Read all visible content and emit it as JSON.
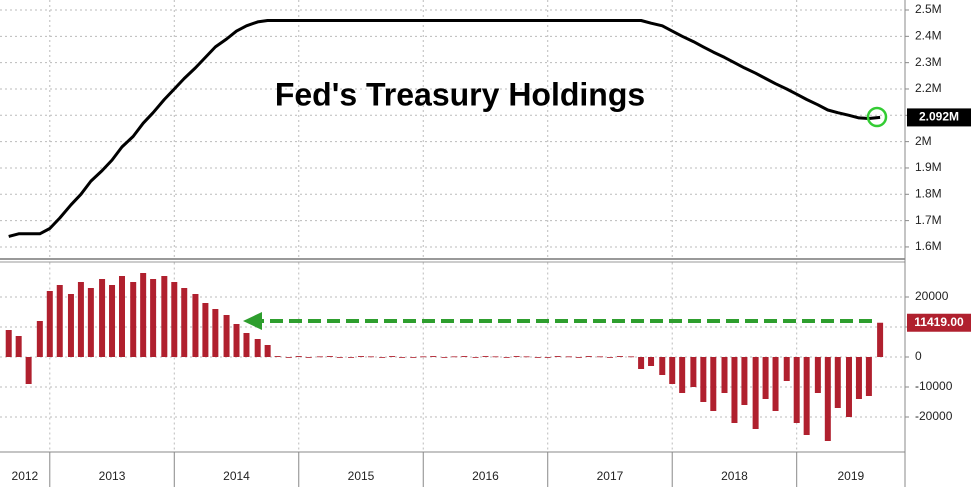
{
  "chart_data": [
    {
      "type": "line",
      "title": "Fed's Treasury Holdings",
      "x": [
        2012.67,
        2012.75,
        2012.83,
        2012.92,
        2013.0,
        2013.08,
        2013.17,
        2013.25,
        2013.33,
        2013.42,
        2013.5,
        2013.58,
        2013.67,
        2013.75,
        2013.83,
        2013.92,
        2014.0,
        2014.08,
        2014.17,
        2014.25,
        2014.33,
        2014.42,
        2014.5,
        2014.58,
        2014.67,
        2014.75,
        2014.83,
        2014.92,
        2015.0,
        2015.08,
        2015.17,
        2015.25,
        2015.33,
        2015.42,
        2015.5,
        2015.58,
        2015.67,
        2015.75,
        2015.83,
        2015.92,
        2016.0,
        2016.08,
        2016.17,
        2016.25,
        2016.33,
        2016.42,
        2016.5,
        2016.58,
        2016.67,
        2016.75,
        2016.83,
        2016.92,
        2017.0,
        2017.08,
        2017.17,
        2017.25,
        2017.33,
        2017.42,
        2017.5,
        2017.58,
        2017.67,
        2017.75,
        2017.83,
        2017.92,
        2018.0,
        2018.08,
        2018.17,
        2018.25,
        2018.33,
        2018.42,
        2018.5,
        2018.58,
        2018.67,
        2018.75,
        2018.83,
        2018.92,
        2019.0,
        2019.08,
        2019.17,
        2019.25,
        2019.33,
        2019.42,
        2019.5,
        2019.58,
        2019.67
      ],
      "series": [
        {
          "color": "#000000",
          "values": [
            1.64,
            1.65,
            1.65,
            1.65,
            1.67,
            1.71,
            1.76,
            1.8,
            1.85,
            1.89,
            1.93,
            1.98,
            2.02,
            2.07,
            2.11,
            2.16,
            2.2,
            2.24,
            2.28,
            2.32,
            2.36,
            2.39,
            2.42,
            2.44,
            2.455,
            2.46,
            2.46,
            2.46,
            2.46,
            2.46,
            2.46,
            2.46,
            2.46,
            2.46,
            2.46,
            2.46,
            2.46,
            2.46,
            2.46,
            2.46,
            2.46,
            2.46,
            2.46,
            2.46,
            2.46,
            2.46,
            2.46,
            2.46,
            2.46,
            2.46,
            2.46,
            2.46,
            2.46,
            2.46,
            2.46,
            2.46,
            2.46,
            2.46,
            2.46,
            2.46,
            2.46,
            2.46,
            2.45,
            2.44,
            2.42,
            2.4,
            2.38,
            2.36,
            2.34,
            2.32,
            2.3,
            2.28,
            2.26,
            2.24,
            2.22,
            2.2,
            2.18,
            2.16,
            2.14,
            2.12,
            2.11,
            2.1,
            2.09,
            2.088,
            2.092
          ],
          "value_labels": [
            null,
            null,
            null,
            null,
            null,
            null,
            null,
            null,
            null,
            null,
            null,
            null,
            null,
            null,
            null,
            null,
            null,
            null,
            null,
            null,
            null,
            null,
            null,
            null,
            null,
            null,
            null,
            null,
            null,
            null,
            null,
            null,
            null,
            null,
            null,
            null,
            null,
            null,
            null,
            null,
            null,
            null,
            null,
            null,
            null,
            null,
            null,
            null,
            null,
            null,
            null,
            null,
            null,
            null,
            null,
            null,
            null,
            null,
            null,
            null,
            null,
            null,
            null,
            null,
            null,
            null,
            null,
            null,
            null,
            null,
            null,
            null,
            null,
            null,
            null,
            null,
            null,
            null,
            null,
            null,
            null,
            null,
            null,
            null,
            "2.092M"
          ]
        }
      ],
      "xlim": [
        2012.6,
        2019.87
      ],
      "ylim": [
        1.558,
        2.538
      ],
      "yticks": [
        {
          "value": 1.6,
          "label": "1.6M"
        },
        {
          "value": 1.7,
          "label": "1.7M"
        },
        {
          "value": 1.8,
          "label": "1.8M"
        },
        {
          "value": 1.9,
          "label": "1.9M"
        },
        {
          "value": 2,
          "label": "2M"
        },
        {
          "value": 2.1,
          "label": "2.1M"
        },
        {
          "value": 2.2,
          "label": "2.2M"
        },
        {
          "value": 2.3,
          "label": "2.3M"
        },
        {
          "value": 2.4,
          "label": "2.4M"
        },
        {
          "value": 2.5,
          "label": "2.5M"
        }
      ],
      "grid": true
    },
    {
      "type": "bar",
      "x": [
        2012.67,
        2012.75,
        2012.83,
        2012.92,
        2013.0,
        2013.08,
        2013.17,
        2013.25,
        2013.33,
        2013.42,
        2013.5,
        2013.58,
        2013.67,
        2013.75,
        2013.83,
        2013.92,
        2014.0,
        2014.08,
        2014.17,
        2014.25,
        2014.33,
        2014.42,
        2014.5,
        2014.58,
        2014.67,
        2014.75,
        2014.83,
        2014.92,
        2015.0,
        2015.08,
        2015.17,
        2015.25,
        2015.33,
        2015.42,
        2015.5,
        2015.58,
        2015.67,
        2015.75,
        2015.83,
        2015.92,
        2016.0,
        2016.08,
        2016.17,
        2016.25,
        2016.33,
        2016.42,
        2016.5,
        2016.58,
        2016.67,
        2016.75,
        2016.83,
        2016.92,
        2017.0,
        2017.08,
        2017.17,
        2017.25,
        2017.33,
        2017.42,
        2017.5,
        2017.58,
        2017.67,
        2017.75,
        2017.83,
        2017.92,
        2018.0,
        2018.08,
        2018.17,
        2018.25,
        2018.33,
        2018.42,
        2018.5,
        2018.58,
        2018.67,
        2018.75,
        2018.83,
        2018.92,
        2019.0,
        2019.08,
        2019.17,
        2019.25,
        2019.33,
        2019.42,
        2019.5,
        2019.58,
        2019.67
      ],
      "series": [
        {
          "color": "#b0202e",
          "values": [
            9000,
            7000,
            -9000,
            12000,
            22000,
            24000,
            21000,
            25000,
            23000,
            26000,
            24000,
            27000,
            25000,
            28000,
            26000,
            27000,
            25000,
            23000,
            21000,
            18000,
            16000,
            14000,
            11000,
            8000,
            6000,
            4000,
            300,
            0,
            300,
            -200,
            200,
            300,
            0,
            -200,
            300,
            200,
            0,
            300,
            -200,
            0,
            200,
            300,
            0,
            200,
            300,
            -200,
            300,
            200,
            0,
            300,
            200,
            0,
            -200,
            300,
            200,
            0,
            300,
            200,
            0,
            300,
            200,
            -4000,
            -3000,
            -6000,
            -9000,
            -12000,
            -10000,
            -15000,
            -18000,
            -12000,
            -22000,
            -16000,
            -24000,
            -14000,
            -18000,
            -8000,
            -22000,
            -26000,
            -12000,
            -28000,
            -17000,
            -20000,
            -14000,
            -13000,
            11419
          ],
          "value_labels": [
            null,
            null,
            null,
            null,
            null,
            null,
            null,
            null,
            null,
            null,
            null,
            null,
            null,
            null,
            null,
            null,
            null,
            null,
            null,
            null,
            null,
            null,
            null,
            null,
            null,
            null,
            null,
            null,
            null,
            null,
            null,
            null,
            null,
            null,
            null,
            null,
            null,
            null,
            null,
            null,
            null,
            null,
            null,
            null,
            null,
            null,
            null,
            null,
            null,
            null,
            null,
            null,
            null,
            null,
            null,
            null,
            null,
            null,
            null,
            null,
            null,
            null,
            null,
            null,
            null,
            null,
            null,
            null,
            null,
            null,
            null,
            null,
            null,
            null,
            null,
            null,
            null,
            null,
            null,
            null,
            null,
            null,
            null,
            null,
            "11419.00"
          ]
        }
      ],
      "xlim": [
        2012.6,
        2019.87
      ],
      "xticks": [
        2012,
        2013,
        2014,
        2015,
        2016,
        2017,
        2018,
        2019
      ],
      "ylim": [
        -31500,
        31500
      ],
      "yticks": [
        -20000,
        -10000,
        0,
        10000,
        20000
      ],
      "grid": true
    }
  ]
}
